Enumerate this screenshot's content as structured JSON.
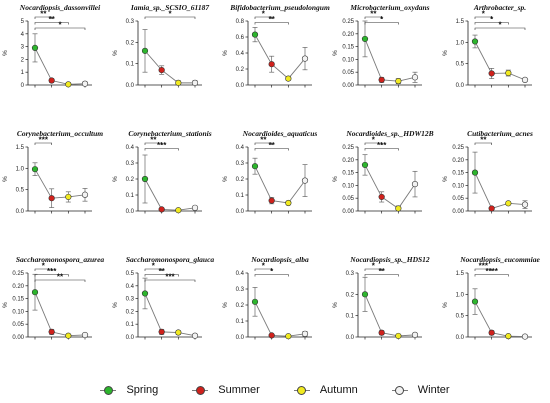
{
  "legend": {
    "spring": {
      "label": "Spring",
      "color": "#2db52d"
    },
    "summer": {
      "label": "Summer",
      "color": "#d0211c"
    },
    "autumn": {
      "label": "Autumn",
      "color": "#f1ea20"
    },
    "winter": {
      "label": "Winter",
      "color": "#f2f2f2"
    }
  },
  "chart_data": [
    {
      "type": "line",
      "title": "Nocardiopsis_dassonvillei",
      "ylabel": "%",
      "ylim": [
        0,
        5
      ],
      "yticks": [
        "0",
        "1",
        "2",
        "3",
        "4",
        "5"
      ],
      "series": [
        {
          "values": [
            2.9,
            0.35,
            0.05,
            0.1
          ],
          "err": [
            1.1,
            0.15,
            0.05,
            0.15
          ]
        }
      ],
      "significance": [
        {
          "label": "**",
          "from": 0,
          "to": 1
        },
        {
          "label": "**",
          "from": 0,
          "to": 2
        },
        {
          "label": "*",
          "from": 0,
          "to": 3
        }
      ]
    },
    {
      "type": "line",
      "title": "Iamia_sp._SCSIO_61187",
      "ylabel": "%",
      "ylim": [
        0,
        0.3
      ],
      "yticks": [
        "0.0",
        "0.1",
        "0.2",
        "0.3"
      ],
      "series": [
        {
          "values": [
            0.16,
            0.07,
            0.01,
            0.01
          ],
          "err": [
            0.1,
            0.02,
            0.01,
            0.01
          ]
        }
      ],
      "significance": [
        {
          "label": "*",
          "from": 0,
          "to": 3
        }
      ]
    },
    {
      "type": "line",
      "title": "Bifidobacterium_pseudolongum",
      "ylabel": "%",
      "ylim": [
        0,
        0.8
      ],
      "yticks": [
        "0.0",
        "0.2",
        "0.4",
        "0.6",
        "0.8"
      ],
      "series": [
        {
          "values": [
            0.63,
            0.26,
            0.08,
            0.33
          ],
          "err": [
            0.09,
            0.1,
            0.02,
            0.14
          ]
        }
      ],
      "significance": [
        {
          "label": "*",
          "from": 0,
          "to": 1
        },
        {
          "label": "**",
          "from": 0,
          "to": 2
        }
      ]
    },
    {
      "type": "line",
      "title": "Microbacterium_oxydans",
      "ylabel": "%",
      "ylim": [
        0,
        0.25
      ],
      "yticks": [
        "0.00",
        "0.05",
        "0.10",
        "0.15",
        "0.20",
        "0.25"
      ],
      "series": [
        {
          "values": [
            0.18,
            0.02,
            0.015,
            0.03
          ],
          "err": [
            0.07,
            0.01,
            0.01,
            0.02
          ]
        }
      ],
      "significance": [
        {
          "label": "**",
          "from": 0,
          "to": 1
        },
        {
          "label": "*",
          "from": 0,
          "to": 2
        }
      ]
    },
    {
      "type": "line",
      "title": "Arthrobacter_sp.",
      "ylabel": "%",
      "ylim": [
        0,
        1.5
      ],
      "yticks": [
        "0.0",
        "0.5",
        "1.0",
        "1.5"
      ],
      "series": [
        {
          "values": [
            1.02,
            0.27,
            0.28,
            0.12
          ],
          "err": [
            0.15,
            0.12,
            0.07,
            0.04
          ]
        }
      ],
      "significance": [
        {
          "label": "*",
          "from": 0,
          "to": 1
        },
        {
          "label": "*",
          "from": 0,
          "to": 2
        },
        {
          "label": "*",
          "from": 0,
          "to": 3
        }
      ]
    },
    {
      "type": "line",
      "title": "Corynebacterium_occultum",
      "ylabel": "%",
      "ylim": [
        0,
        1.5
      ],
      "yticks": [
        "0.0",
        "0.5",
        "1.0",
        "1.5"
      ],
      "series": [
        {
          "values": [
            0.98,
            0.3,
            0.33,
            0.38
          ],
          "err": [
            0.15,
            0.22,
            0.12,
            0.15
          ]
        }
      ],
      "significance": [
        {
          "label": "***",
          "from": 0,
          "to": 1
        }
      ]
    },
    {
      "type": "line",
      "title": "Corynebacterium_stationis",
      "ylabel": "%",
      "ylim": [
        0,
        0.4
      ],
      "yticks": [
        "0.0",
        "0.1",
        "0.2",
        "0.3",
        "0.4"
      ],
      "series": [
        {
          "values": [
            0.2,
            0.01,
            0.005,
            0.02
          ],
          "err": [
            0.15,
            0.01,
            0.005,
            0.01
          ]
        }
      ],
      "significance": [
        {
          "label": "**",
          "from": 0,
          "to": 1
        },
        {
          "label": "***",
          "from": 0,
          "to": 2
        }
      ]
    },
    {
      "type": "line",
      "title": "Nocardioides_aquaticus",
      "ylabel": "%",
      "ylim": [
        0,
        0.4
      ],
      "yticks": [
        "0.0",
        "0.1",
        "0.2",
        "0.3",
        "0.4"
      ],
      "series": [
        {
          "values": [
            0.28,
            0.065,
            0.05,
            0.19
          ],
          "err": [
            0.05,
            0.02,
            0.01,
            0.1
          ]
        }
      ],
      "significance": [
        {
          "label": "**",
          "from": 0,
          "to": 1
        },
        {
          "label": "**",
          "from": 0,
          "to": 2
        }
      ]
    },
    {
      "type": "line",
      "title": "Nocardioides_sp._HDW12B",
      "ylabel": "%",
      "ylim": [
        0,
        0.25
      ],
      "yticks": [
        "0.00",
        "0.05",
        "0.10",
        "0.15",
        "0.20",
        "0.25"
      ],
      "series": [
        {
          "values": [
            0.18,
            0.055,
            0.01,
            0.105
          ],
          "err": [
            0.04,
            0.02,
            0.01,
            0.05
          ]
        }
      ],
      "significance": [
        {
          "label": "*",
          "from": 0,
          "to": 1
        },
        {
          "label": "***",
          "from": 0,
          "to": 2
        }
      ]
    },
    {
      "type": "line",
      "title": "Cutibacterium_acnes",
      "ylabel": "%",
      "ylim": [
        0,
        0.25
      ],
      "yticks": [
        "0.00",
        "0.05",
        "0.10",
        "0.15",
        "0.20",
        "0.25"
      ],
      "series": [
        {
          "values": [
            0.15,
            0.01,
            0.03,
            0.025
          ],
          "err": [
            0.08,
            0.005,
            0.005,
            0.015
          ]
        }
      ],
      "significance": [
        {
          "label": "**",
          "from": 0,
          "to": 1
        }
      ]
    },
    {
      "type": "line",
      "title": "Saccharomonospora_azurea",
      "ylabel": "%",
      "ylim": [
        0,
        0.25
      ],
      "yticks": [
        "0.00",
        "0.05",
        "0.10",
        "0.15",
        "0.20",
        "0.25"
      ],
      "series": [
        {
          "values": [
            0.175,
            0.02,
            0.005,
            0.008
          ],
          "err": [
            0.07,
            0.01,
            0.005,
            0.005
          ]
        }
      ],
      "significance": [
        {
          "label": "*",
          "from": 0,
          "to": 1
        },
        {
          "label": "***",
          "from": 0,
          "to": 2
        },
        {
          "label": "**",
          "from": 0,
          "to": 3
        }
      ]
    },
    {
      "type": "line",
      "title": "Saccharomonospora_glauca",
      "ylabel": "%",
      "ylim": [
        0,
        0.5
      ],
      "yticks": [
        "0.0",
        "0.1",
        "0.2",
        "0.3",
        "0.4",
        "0.5"
      ],
      "series": [
        {
          "values": [
            0.34,
            0.04,
            0.035,
            0.01
          ],
          "err": [
            0.12,
            0.02,
            0.015,
            0.01
          ]
        }
      ],
      "significance": [
        {
          "label": "*",
          "from": 0,
          "to": 1
        },
        {
          "label": "**",
          "from": 0,
          "to": 2
        },
        {
          "label": "***",
          "from": 0,
          "to": 3
        }
      ]
    },
    {
      "type": "line",
      "title": "Nocardiopsis_alba",
      "ylabel": "%",
      "ylim": [
        0,
        0.4
      ],
      "yticks": [
        "0.0",
        "0.1",
        "0.2",
        "0.3",
        "0.4"
      ],
      "series": [
        {
          "values": [
            0.22,
            0.01,
            0.005,
            0.02
          ],
          "err": [
            0.09,
            0.005,
            0.005,
            0.015
          ]
        }
      ],
      "significance": [
        {
          "label": "*",
          "from": 0,
          "to": 1
        },
        {
          "label": "*",
          "from": 0,
          "to": 2
        }
      ]
    },
    {
      "type": "line",
      "title": "Nocardiopsis_sp._HDS12",
      "ylabel": "%",
      "ylim": [
        0,
        0.3
      ],
      "yticks": [
        "0.0",
        "0.1",
        "0.2",
        "0.3"
      ],
      "series": [
        {
          "values": [
            0.2,
            0.02,
            0.005,
            0.01
          ],
          "err": [
            0.08,
            0.01,
            0.005,
            0.005
          ]
        }
      ],
      "significance": [
        {
          "label": "*",
          "from": 0,
          "to": 1
        },
        {
          "label": "**",
          "from": 0,
          "to": 2
        }
      ]
    },
    {
      "type": "line",
      "title": "Nocardiopsis_eucommiae",
      "ylabel": "%",
      "ylim": [
        0,
        1.5
      ],
      "yticks": [
        "0.0",
        "0.5",
        "1.0",
        "1.5"
      ],
      "series": [
        {
          "values": [
            0.83,
            0.1,
            0.02,
            0.01
          ],
          "err": [
            0.3,
            0.05,
            0.01,
            0.01
          ]
        }
      ],
      "significance": [
        {
          "label": "***",
          "from": 0,
          "to": 1
        },
        {
          "label": "****",
          "from": 0,
          "to": 2
        }
      ]
    }
  ]
}
